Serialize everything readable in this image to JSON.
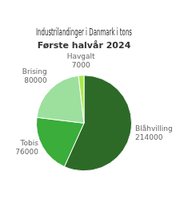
{
  "chart_data": {
    "type": "pie",
    "title": "Industrilandinger i Danmark i tons",
    "subtitle": "Første halvår 2024",
    "categories": [
      "Blåhvilling",
      "Tobis",
      "Brising",
      "Havgalt"
    ],
    "values": [
      214000,
      76000,
      80000,
      7000
    ],
    "colors": [
      "#2d6a27",
      "#3aad3a",
      "#9de09d",
      "#a8e84a"
    ],
    "data_labels": true
  }
}
